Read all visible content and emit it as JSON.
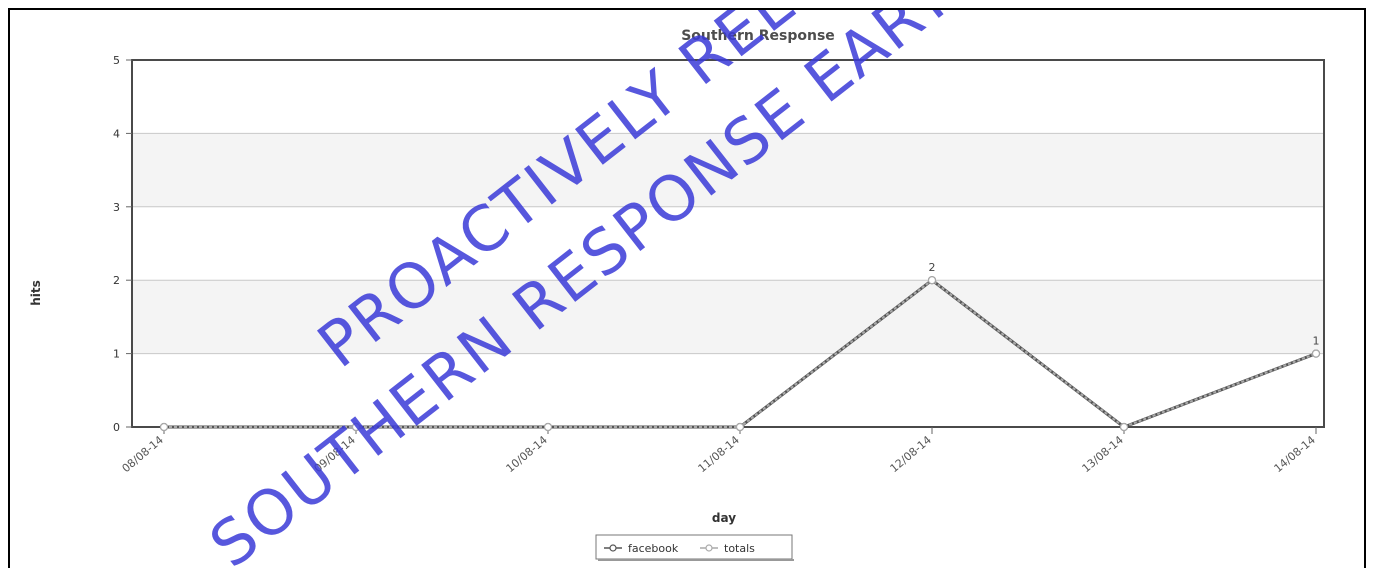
{
  "chart_data": {
    "type": "line",
    "title": "Southern Response",
    "xlabel": "day",
    "ylabel": "hits",
    "categories": [
      "08/08-14",
      "09/08-14",
      "10/08-14",
      "11/08-14",
      "12/08-14",
      "13/08-14",
      "14/08-14"
    ],
    "ylim": [
      0,
      5
    ],
    "yticks": [
      "0",
      "1",
      "2",
      "3",
      "4",
      "5"
    ],
    "grid": true,
    "alternating_bands": true,
    "legend_position": "bottom-center",
    "series": [
      {
        "name": "facebook",
        "values": [
          0,
          0,
          0,
          0,
          2,
          0,
          1
        ],
        "color": "#555555"
      },
      {
        "name": "totals",
        "values": [
          0,
          0,
          0,
          0,
          2,
          0,
          1
        ],
        "color": "#aaaaaa"
      }
    ],
    "data_labels": [
      {
        "x": "12/08-14",
        "label": "2"
      },
      {
        "x": "14/08-14",
        "label": "1"
      }
    ]
  },
  "watermark": {
    "line1": "PROACTIVELY RELEASED",
    "line2": "SOUTHERN RESPONSE EARTHQUAKE",
    "color": "#3a3ad8"
  }
}
